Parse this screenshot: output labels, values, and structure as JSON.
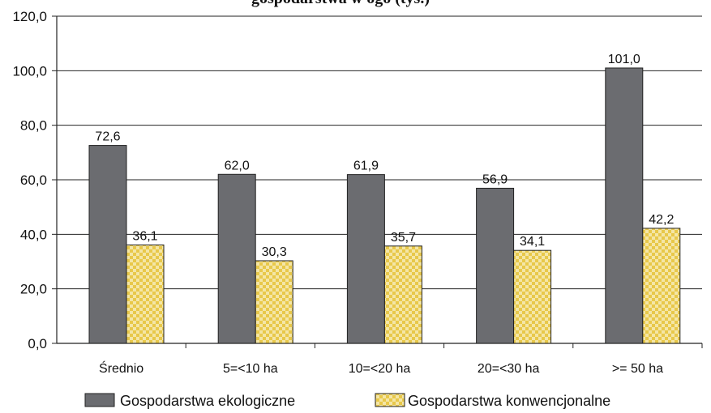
{
  "chart_data": {
    "type": "bar",
    "title": "gospodarstwa w ogó (tys.)",
    "categories": [
      "Średnio",
      "5=<10 ha",
      "10=<20 ha",
      "20=<30 ha",
      ">= 50 ha"
    ],
    "series": [
      {
        "name": "Gospodarstwa ekologiczne",
        "values": [
          72.6,
          62.0,
          61.9,
          56.9,
          101.0
        ],
        "labels": [
          "72,6",
          "62,0",
          "61,9",
          "56,9",
          "101,0"
        ],
        "color": "#6b6c70"
      },
      {
        "name": "Gospodarstwa konwencjonalne",
        "values": [
          36.1,
          30.3,
          35.7,
          34.1,
          42.2
        ],
        "labels": [
          "36,1",
          "30,3",
          "35,7",
          "34,1",
          "42,2"
        ],
        "color": "#e8c84a"
      }
    ],
    "ylim": [
      0,
      120
    ],
    "yticks": [
      "0,0",
      "20,0",
      "40,0",
      "60,0",
      "80,0",
      "100,0",
      "120,0"
    ],
    "grid": true,
    "legend_position": "bottom"
  }
}
